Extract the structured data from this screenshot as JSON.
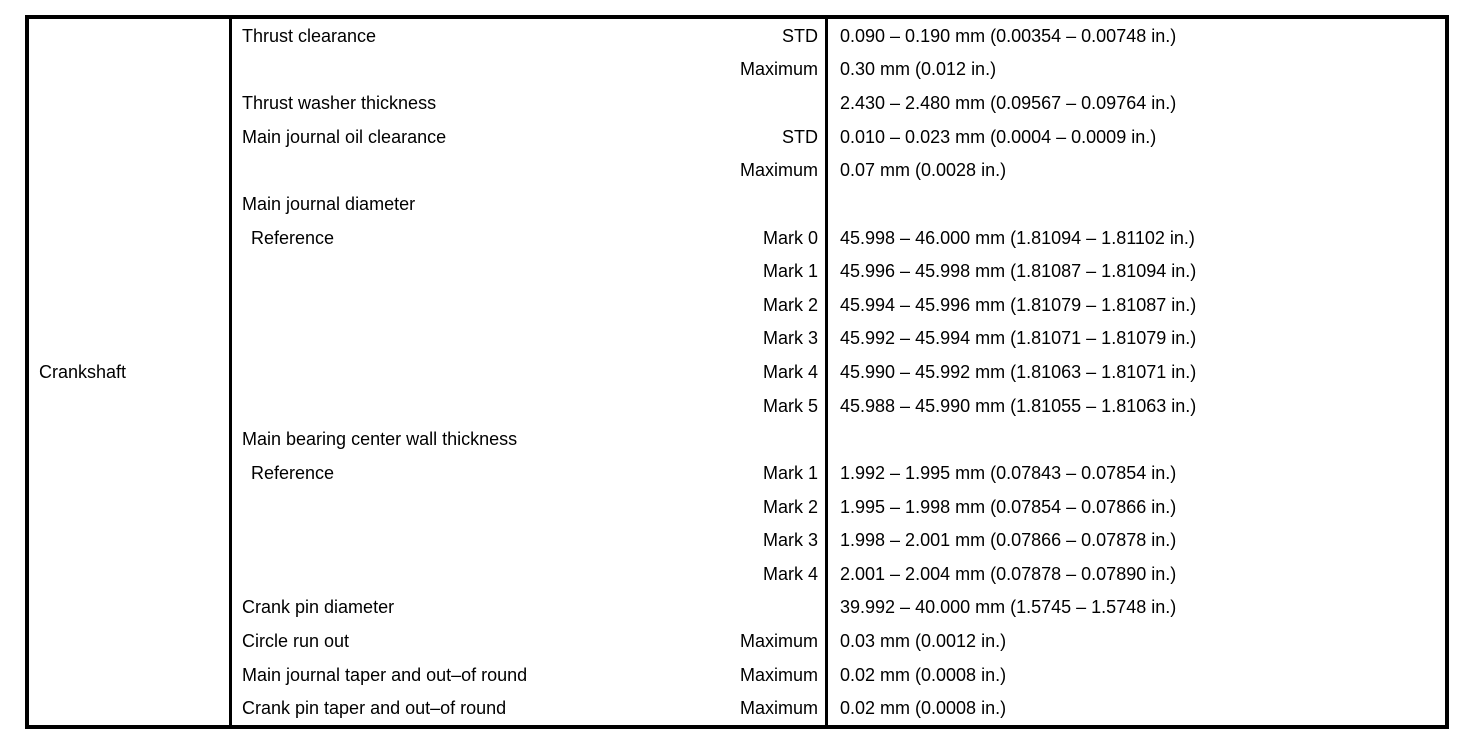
{
  "table": {
    "category": "Crankshaft",
    "rows": [
      {
        "item": "Thrust clearance",
        "qualifier": "STD",
        "value": "0.090 – 0.190 mm (0.00354 – 0.00748 in.)"
      },
      {
        "item": "",
        "qualifier": "Maximum",
        "value": "0.30 mm (0.012 in.)"
      },
      {
        "item": "Thrust washer thickness",
        "qualifier": "",
        "value": "2.430 – 2.480 mm (0.09567 – 0.09764 in.)"
      },
      {
        "item": "Main journal oil clearance",
        "qualifier": "STD",
        "value": "0.010 – 0.023 mm (0.0004 – 0.0009 in.)"
      },
      {
        "item": "",
        "qualifier": "Maximum",
        "value": "0.07 mm (0.0028 in.)"
      },
      {
        "item": "Main journal diameter",
        "qualifier": "",
        "value": ""
      },
      {
        "item": "Reference",
        "qualifier": "Mark 0",
        "value": "45.998 – 46.000 mm (1.81094 – 1.81102 in.)"
      },
      {
        "item": "",
        "qualifier": "Mark 1",
        "value": "45.996 – 45.998 mm (1.81087 – 1.81094 in.)"
      },
      {
        "item": "",
        "qualifier": "Mark 2",
        "value": "45.994 – 45.996 mm (1.81079 – 1.81087 in.)"
      },
      {
        "item": "",
        "qualifier": "Mark 3",
        "value": "45.992 – 45.994 mm (1.81071 – 1.81079 in.)"
      },
      {
        "item": "",
        "qualifier": "Mark 4",
        "value": "45.990 – 45.992 mm (1.81063 – 1.81071 in.)"
      },
      {
        "item": "",
        "qualifier": "Mark 5",
        "value": "45.988 – 45.990 mm (1.81055 – 1.81063 in.)"
      },
      {
        "item": "Main bearing center wall thickness",
        "qualifier": "",
        "value": ""
      },
      {
        "item": "Reference",
        "qualifier": "Mark 1",
        "value": "1.992 – 1.995 mm (0.07843 – 0.07854 in.)"
      },
      {
        "item": "",
        "qualifier": "Mark 2",
        "value": "1.995 – 1.998 mm (0.07854 – 0.07866 in.)"
      },
      {
        "item": "",
        "qualifier": "Mark 3",
        "value": "1.998 – 2.001 mm (0.07866 – 0.07878 in.)"
      },
      {
        "item": "",
        "qualifier": "Mark 4",
        "value": "2.001 – 2.004 mm (0.07878 – 0.07890 in.)"
      },
      {
        "item": "Crank pin diameter",
        "qualifier": "",
        "value": "39.992 – 40.000 mm (1.5745 – 1.5748 in.)"
      },
      {
        "item": "Circle run out",
        "qualifier": "Maximum",
        "value": "0.03 mm (0.0012 in.)"
      },
      {
        "item": "Main journal taper and out–of round",
        "qualifier": "Maximum",
        "value": "0.02 mm (0.0008 in.)"
      },
      {
        "item": "Crank pin taper and out–of round",
        "qualifier": "Maximum",
        "value": "0.02 mm (0.0008 in.)"
      }
    ]
  },
  "colors": {
    "border": "#000000",
    "text": "#000000",
    "background": "#ffffff"
  }
}
